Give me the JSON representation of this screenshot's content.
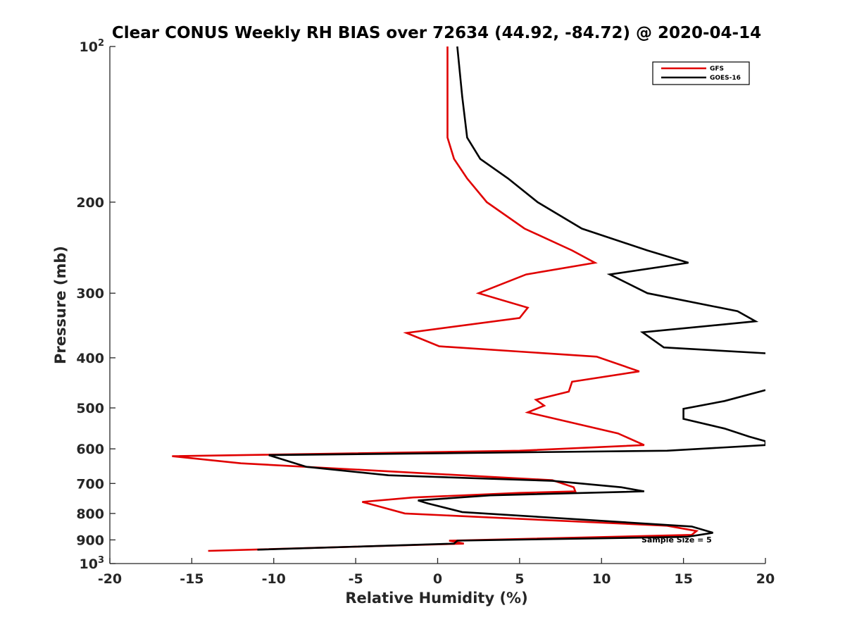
{
  "chart_data": {
    "type": "line",
    "title": "Clear CONUS Weekly RH BIAS over 72634 (44.92, -84.72) @ 2020-04-14",
    "xlabel": "Relative Humidity (%)",
    "ylabel": "Pressure (mb)",
    "xlim": [
      -20,
      20
    ],
    "ylim": [
      100,
      1000
    ],
    "yscale": "log",
    "yreverse": true,
    "xticks": [
      -20,
      -15,
      -10,
      -5,
      0,
      5,
      10,
      15,
      20
    ],
    "xtick_labels": [
      "-20",
      "-15",
      "-10",
      "-5",
      "0",
      "5",
      "10",
      "15",
      "20"
    ],
    "yticks": [
      100,
      200,
      300,
      400,
      500,
      600,
      700,
      800,
      900,
      1000
    ],
    "ytick_labels": [
      {
        "base": "10",
        "exp": "2"
      },
      {
        "base": "200",
        "exp": ""
      },
      {
        "base": "300",
        "exp": ""
      },
      {
        "base": "400",
        "exp": ""
      },
      {
        "base": "500",
        "exp": ""
      },
      {
        "base": "600",
        "exp": ""
      },
      {
        "base": "700",
        "exp": ""
      },
      {
        "base": "800",
        "exp": ""
      },
      {
        "base": "900",
        "exp": ""
      },
      {
        "base": "10",
        "exp": "3"
      }
    ],
    "legend_position": "top-right",
    "annotation": "Sample Size = 5",
    "series": [
      {
        "name": "GFS",
        "color": "#e00000",
        "rh": [
          0.6,
          0.6,
          0.6,
          1.0,
          1.8,
          3.0,
          5.3,
          8.2,
          9.6,
          5.4,
          2.5,
          5.5,
          5.0,
          -1.9,
          0.1,
          9.7,
          12.3,
          8.2,
          8.0,
          6.0,
          6.5,
          5.5,
          11.0,
          12.6,
          5.0,
          -16.2,
          -12.0,
          7.0,
          8.3,
          8.4,
          5.0,
          -1.5,
          -4.6,
          -3.8,
          -2.0,
          14.0,
          15.8,
          15.5,
          0.7,
          1.6,
          -14.0
        ],
        "p": [
          100,
          125,
          150,
          165,
          180,
          200,
          225,
          248,
          262,
          276,
          300,
          320,
          335,
          358,
          380,
          398,
          425,
          445,
          465,
          482,
          495,
          510,
          560,
          590,
          605,
          620,
          640,
          690,
          712,
          725,
          730,
          745,
          760,
          772,
          800,
          845,
          865,
          880,
          903,
          915,
          945
        ]
      },
      {
        "name": "GOES-16",
        "color": "#000000",
        "rh": [
          1.2,
          1.5,
          1.8,
          2.6,
          4.3,
          6.1,
          8.8,
          12.8,
          15.3,
          10.5,
          12.8,
          18.3,
          19.4,
          12.5,
          13.8,
          20.0,
          null,
          20.0,
          17.5,
          15.0,
          15.0,
          17.5,
          19.0,
          20.0,
          20.0,
          14.0,
          -10.3,
          -8.0,
          -3.0,
          7.0,
          11.2,
          12.6,
          3.2,
          -1.2,
          -0.6,
          1.5,
          15.5,
          16.8,
          15.2,
          1.2,
          1.0,
          -11.0
        ],
        "p": [
          100,
          125,
          150,
          165,
          180,
          200,
          225,
          248,
          262,
          276,
          300,
          325,
          340,
          357,
          382,
          392,
          null,
          462,
          485,
          502,
          525,
          548,
          568,
          580,
          590,
          605,
          617,
          650,
          675,
          692,
          712,
          725,
          738,
          755,
          765,
          795,
          848,
          872,
          888,
          903,
          915,
          940
        ]
      }
    ]
  }
}
